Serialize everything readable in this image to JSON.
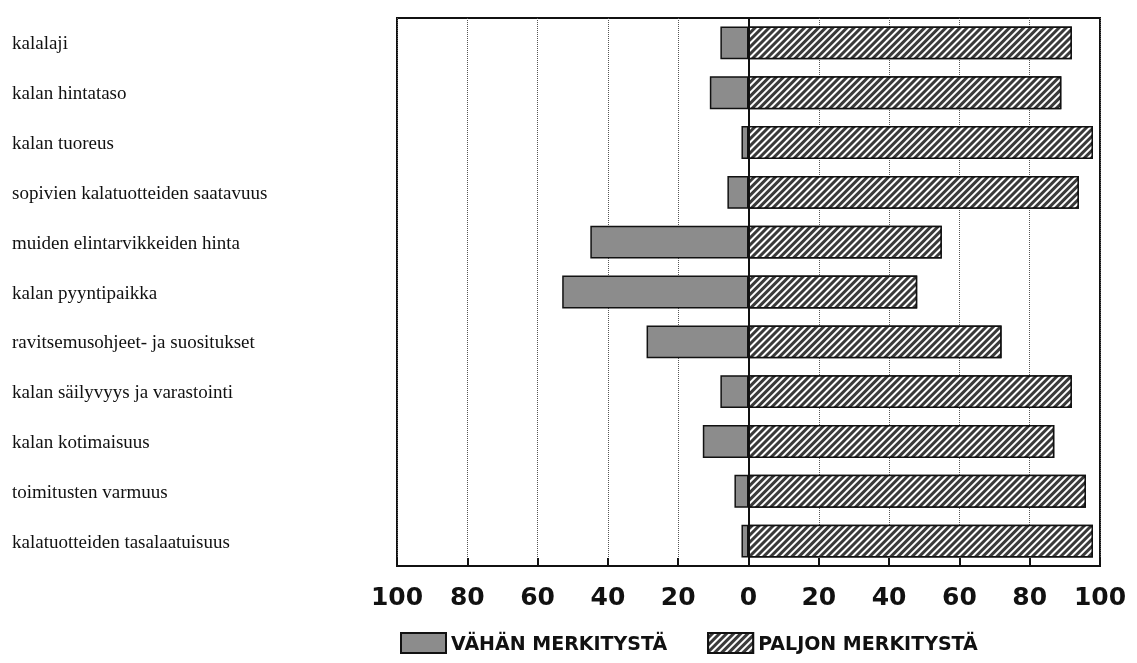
{
  "chart_data": {
    "type": "bar",
    "orientation": "horizontal",
    "stacked": true,
    "categories": [
      "kalalaji",
      "kalan hintataso",
      "kalan tuoreus",
      "sopivien kalatuotteiden saatavuus",
      "muiden elintarvikkeiden hinta",
      "kalan pyyntipaikka",
      "ravitsemusohjeet- ja suositukset",
      "kalan säilyvyys ja varastointi",
      "kalan kotimaisuus",
      "toimitusten varmuus",
      "kalatuotteiden tasalaatuisuus"
    ],
    "series": [
      {
        "name": "VÄHÄN MERKITYSTÄ",
        "color": "#8c8c8c",
        "values": [
          -8,
          -11,
          -2,
          -6,
          -45,
          -53,
          -29,
          -8,
          -13,
          -4,
          -2
        ]
      },
      {
        "name": "PALJON MERKITYSTÄ",
        "color": "#3a3a3a",
        "values": [
          92,
          89,
          98,
          94,
          55,
          48,
          72,
          92,
          87,
          96,
          98
        ]
      }
    ],
    "xlim": [
      -100,
      100
    ],
    "xticks": [
      {
        "value": -100,
        "label": "100"
      },
      {
        "value": -80,
        "label": "80"
      },
      {
        "value": -60,
        "label": "60"
      },
      {
        "value": -40,
        "label": "40"
      },
      {
        "value": -20,
        "label": "20"
      },
      0,
      20,
      40,
      60,
      80,
      100
    ],
    "grid": "x",
    "legend": "bottom"
  }
}
